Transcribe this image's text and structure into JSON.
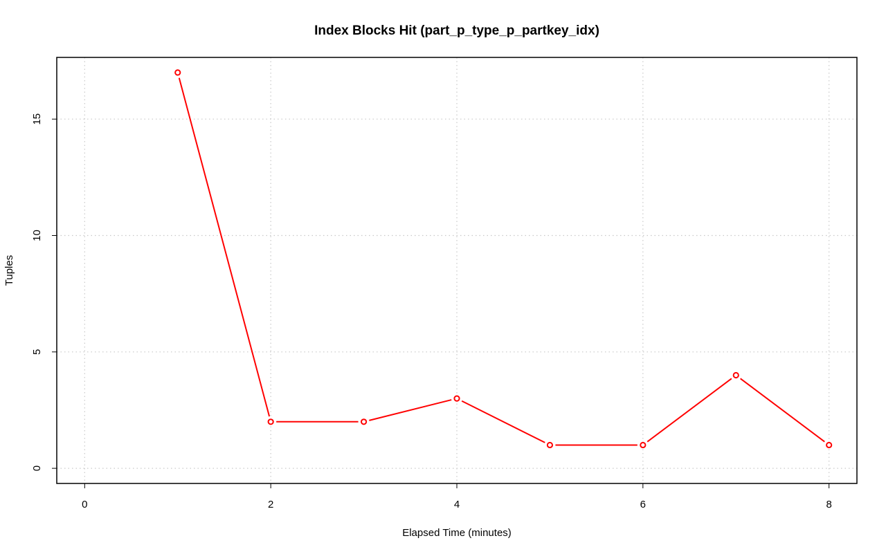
{
  "chart_data": {
    "type": "line",
    "title": "Index Blocks Hit (part_p_type_p_partkey_idx)",
    "xlabel": "Elapsed Time (minutes)",
    "ylabel": "Tuples",
    "xlim": [
      -0.3,
      8.3
    ],
    "ylim": [
      -0.65,
      17.65
    ],
    "xticks": [
      0,
      2,
      4,
      6,
      8
    ],
    "yticks": [
      0,
      5,
      10,
      15
    ],
    "grid": true,
    "series": [
      {
        "x": [
          1,
          2,
          3,
          4,
          5,
          6,
          7,
          8
        ],
        "values": [
          17,
          2,
          2,
          3,
          1,
          1,
          4,
          1
        ]
      }
    ],
    "colors": {
      "series": "#ff0000",
      "axes": "#000000",
      "grid": "#c8c8c8"
    }
  }
}
